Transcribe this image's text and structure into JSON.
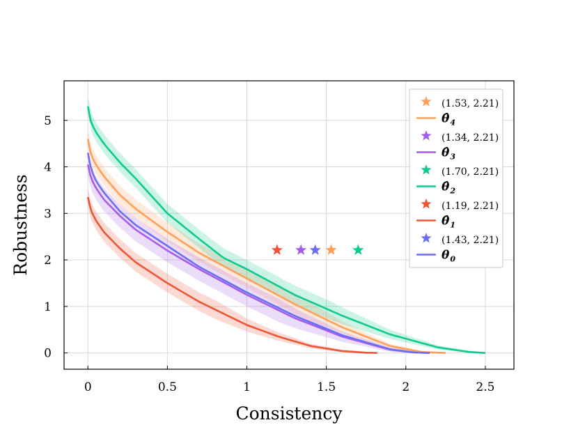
{
  "chart_data": {
    "type": "line",
    "title": "",
    "xlabel": "Consistency",
    "ylabel": "Robustness",
    "xlim": [
      -0.15,
      2.68
    ],
    "ylim": [
      -0.35,
      5.85
    ],
    "xticks": [
      0,
      0.5,
      1,
      1.5,
      2,
      2.5
    ],
    "xtick_labels": [
      "0",
      "0.5",
      "1",
      "1.5",
      "2",
      "2.5"
    ],
    "yticks": [
      0,
      1,
      2,
      3,
      4,
      5
    ],
    "ytick_labels": [
      "0",
      "1",
      "2",
      "3",
      "4",
      "5"
    ],
    "grid": true,
    "legend_position": "top-right",
    "series": [
      {
        "key": "theta4",
        "name": "θ̂",
        "subscript": "4",
        "color": "#ff9f5a",
        "x": [
          0,
          0.02,
          0.05,
          0.1,
          0.2,
          0.3,
          0.5,
          0.7,
          1.0,
          1.3,
          1.6,
          1.9,
          2.1,
          2.25
        ],
        "y": [
          4.6,
          4.25,
          4.05,
          3.8,
          3.4,
          3.1,
          2.6,
          2.15,
          1.6,
          1.05,
          0.55,
          0.15,
          0.02,
          0.0
        ],
        "band": 0.2,
        "marker": {
          "x": 1.53,
          "y": 2.21,
          "label": "(1.53, 2.21)"
        }
      },
      {
        "key": "theta3",
        "name": "θ̂",
        "subscript": "3",
        "color": "#a55eea",
        "x": [
          0,
          0.02,
          0.05,
          0.1,
          0.2,
          0.3,
          0.5,
          0.7,
          1.0,
          1.3,
          1.6,
          1.9,
          2.05,
          2.15
        ],
        "y": [
          4.05,
          3.75,
          3.55,
          3.3,
          2.95,
          2.65,
          2.2,
          1.8,
          1.25,
          0.75,
          0.35,
          0.07,
          0.01,
          0.0
        ],
        "band": 0.25,
        "marker": {
          "x": 1.34,
          "y": 2.21,
          "label": "(1.34, 2.21)"
        }
      },
      {
        "key": "theta2",
        "name": "θ̂",
        "subscript": "2",
        "color": "#10c98f",
        "x": [
          0,
          0.02,
          0.05,
          0.1,
          0.2,
          0.3,
          0.5,
          0.7,
          0.85,
          1.0,
          1.3,
          1.6,
          1.9,
          2.2,
          2.4,
          2.5
        ],
        "y": [
          5.3,
          4.95,
          4.75,
          4.5,
          4.1,
          3.75,
          3.0,
          2.45,
          2.05,
          1.8,
          1.25,
          0.8,
          0.4,
          0.12,
          0.02,
          0.0
        ],
        "band": 0.2,
        "marker": {
          "x": 1.7,
          "y": 2.21,
          "label": "(1.70, 2.21)"
        }
      },
      {
        "key": "theta1",
        "name": "θ̂",
        "subscript": "1",
        "color": "#ee5538",
        "x": [
          0,
          0.02,
          0.05,
          0.1,
          0.2,
          0.3,
          0.5,
          0.7,
          1.0,
          1.2,
          1.4,
          1.6,
          1.75,
          1.82
        ],
        "y": [
          3.35,
          3.05,
          2.85,
          2.6,
          2.25,
          1.95,
          1.5,
          1.1,
          0.6,
          0.35,
          0.15,
          0.04,
          0.005,
          0.0
        ],
        "band": 0.2,
        "marker": {
          "x": 1.19,
          "y": 2.21,
          "label": "(1.19, 2.21)"
        }
      },
      {
        "key": "theta0",
        "name": "θ",
        "subscript": "0",
        "color": "#6b6ef0",
        "x": [
          0,
          0.02,
          0.05,
          0.1,
          0.2,
          0.3,
          0.5,
          0.7,
          1.0,
          1.3,
          1.6,
          1.9,
          2.05,
          2.15
        ],
        "y": [
          4.3,
          3.95,
          3.7,
          3.45,
          3.05,
          2.75,
          2.3,
          1.85,
          1.3,
          0.8,
          0.38,
          0.08,
          0.01,
          0.0
        ],
        "band": 0.0,
        "marker": {
          "x": 1.43,
          "y": 2.21,
          "label": "(1.43, 2.21)"
        }
      }
    ]
  }
}
